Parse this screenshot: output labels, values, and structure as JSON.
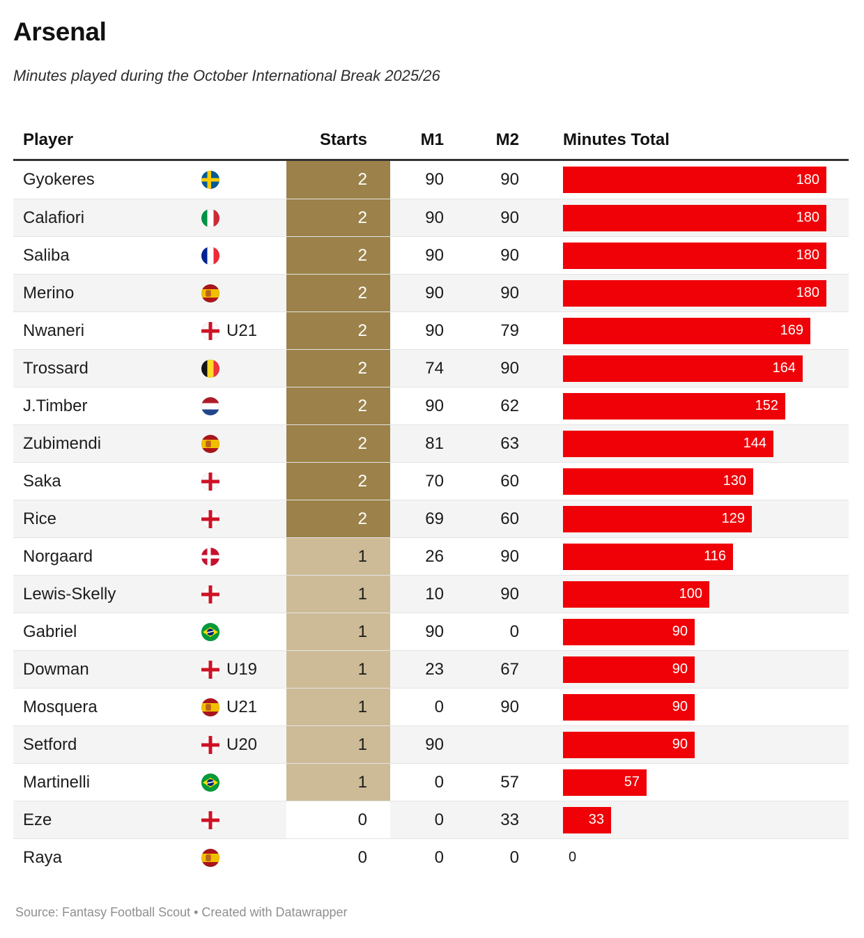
{
  "header": {
    "title": "Arsenal",
    "subtitle": "Minutes played during the October International Break 2025/26"
  },
  "table": {
    "columns": [
      "Player",
      "Starts",
      "M1",
      "M2",
      "Minutes Total"
    ],
    "max_minutes": 180,
    "rows": [
      {
        "player": "Gyokeres",
        "flag": "sweden",
        "suffix": "",
        "starts": 2,
        "m1": "90",
        "m2": "90",
        "total": 180
      },
      {
        "player": "Calafiori",
        "flag": "italy",
        "suffix": "",
        "starts": 2,
        "m1": "90",
        "m2": "90",
        "total": 180
      },
      {
        "player": "Saliba",
        "flag": "france",
        "suffix": "",
        "starts": 2,
        "m1": "90",
        "m2": "90",
        "total": 180
      },
      {
        "player": "Merino",
        "flag": "spain",
        "suffix": "",
        "starts": 2,
        "m1": "90",
        "m2": "90",
        "total": 180
      },
      {
        "player": "Nwaneri",
        "flag": "england",
        "suffix": "U21",
        "starts": 2,
        "m1": "90",
        "m2": "79",
        "total": 169
      },
      {
        "player": "Trossard",
        "flag": "belgium",
        "suffix": "",
        "starts": 2,
        "m1": "74",
        "m2": "90",
        "total": 164
      },
      {
        "player": "J.Timber",
        "flag": "netherlands",
        "suffix": "",
        "starts": 2,
        "m1": "90",
        "m2": "62",
        "total": 152
      },
      {
        "player": "Zubimendi",
        "flag": "spain",
        "suffix": "",
        "starts": 2,
        "m1": "81",
        "m2": "63",
        "total": 144
      },
      {
        "player": "Saka",
        "flag": "england",
        "suffix": "",
        "starts": 2,
        "m1": "70",
        "m2": "60",
        "total": 130
      },
      {
        "player": "Rice",
        "flag": "england",
        "suffix": "",
        "starts": 2,
        "m1": "69",
        "m2": "60",
        "total": 129
      },
      {
        "player": "Norgaard",
        "flag": "denmark",
        "suffix": "",
        "starts": 1,
        "m1": "26",
        "m2": "90",
        "total": 116
      },
      {
        "player": "Lewis-Skelly",
        "flag": "england",
        "suffix": "",
        "starts": 1,
        "m1": "10",
        "m2": "90",
        "total": 100
      },
      {
        "player": "Gabriel",
        "flag": "brazil",
        "suffix": "",
        "starts": 1,
        "m1": "90",
        "m2": "0",
        "total": 90
      },
      {
        "player": "Dowman",
        "flag": "england",
        "suffix": "U19",
        "starts": 1,
        "m1": "23",
        "m2": "67",
        "total": 90
      },
      {
        "player": "Mosquera",
        "flag": "spain",
        "suffix": "U21",
        "starts": 1,
        "m1": "0",
        "m2": "90",
        "total": 90
      },
      {
        "player": "Setford",
        "flag": "england",
        "suffix": "U20",
        "starts": 1,
        "m1": "90",
        "m2": "",
        "total": 90
      },
      {
        "player": "Martinelli",
        "flag": "brazil",
        "suffix": "",
        "starts": 1,
        "m1": "0",
        "m2": "57",
        "total": 57
      },
      {
        "player": "Eze",
        "flag": "england",
        "suffix": "",
        "starts": 0,
        "m1": "0",
        "m2": "33",
        "total": 33
      },
      {
        "player": "Raya",
        "flag": "spain",
        "suffix": "",
        "starts": 0,
        "m1": "0",
        "m2": "0",
        "total": 0
      }
    ]
  },
  "footer": {
    "source": "Source: Fantasy Football Scout • Created with Datawrapper"
  },
  "colors": {
    "bar_red": "#EF0107",
    "starts_2": "#9C824A",
    "starts_1": "#CDBB97",
    "starts_0": "#FFFFFF",
    "starts_2_text": "#FFFFFF",
    "starts_text": "#1A1A1A",
    "stripe": "#F4F4F4"
  },
  "chart_data": {
    "type": "bar",
    "orientation": "horizontal",
    "title": "Arsenal",
    "subtitle": "Minutes played during the October International Break 2025/26",
    "categories": [
      "Gyokeres",
      "Calafiori",
      "Saliba",
      "Merino",
      "Nwaneri",
      "Trossard",
      "J.Timber",
      "Zubimendi",
      "Saka",
      "Rice",
      "Norgaard",
      "Lewis-Skelly",
      "Gabriel",
      "Dowman",
      "Mosquera",
      "Setford",
      "Martinelli",
      "Eze",
      "Raya"
    ],
    "series": [
      {
        "name": "Starts",
        "values": [
          2,
          2,
          2,
          2,
          2,
          2,
          2,
          2,
          2,
          2,
          1,
          1,
          1,
          1,
          1,
          1,
          1,
          0,
          0
        ]
      },
      {
        "name": "M1",
        "values": [
          90,
          90,
          90,
          90,
          90,
          74,
          90,
          81,
          70,
          69,
          26,
          10,
          90,
          23,
          0,
          90,
          0,
          0,
          0
        ]
      },
      {
        "name": "M2",
        "values": [
          90,
          90,
          90,
          90,
          79,
          90,
          62,
          63,
          60,
          60,
          90,
          90,
          0,
          67,
          90,
          null,
          57,
          33,
          0
        ]
      },
      {
        "name": "Minutes Total",
        "values": [
          180,
          180,
          180,
          180,
          169,
          164,
          152,
          144,
          130,
          129,
          116,
          100,
          90,
          90,
          90,
          90,
          57,
          33,
          0
        ]
      }
    ],
    "xlim": [
      0,
      180
    ],
    "grid": false,
    "legend": "none",
    "bar_color": "#EF0107",
    "notes": "Minutes Total rendered as in-table bar chart; Starts column heat-shaded gold (2), tan (1), white (0)"
  }
}
